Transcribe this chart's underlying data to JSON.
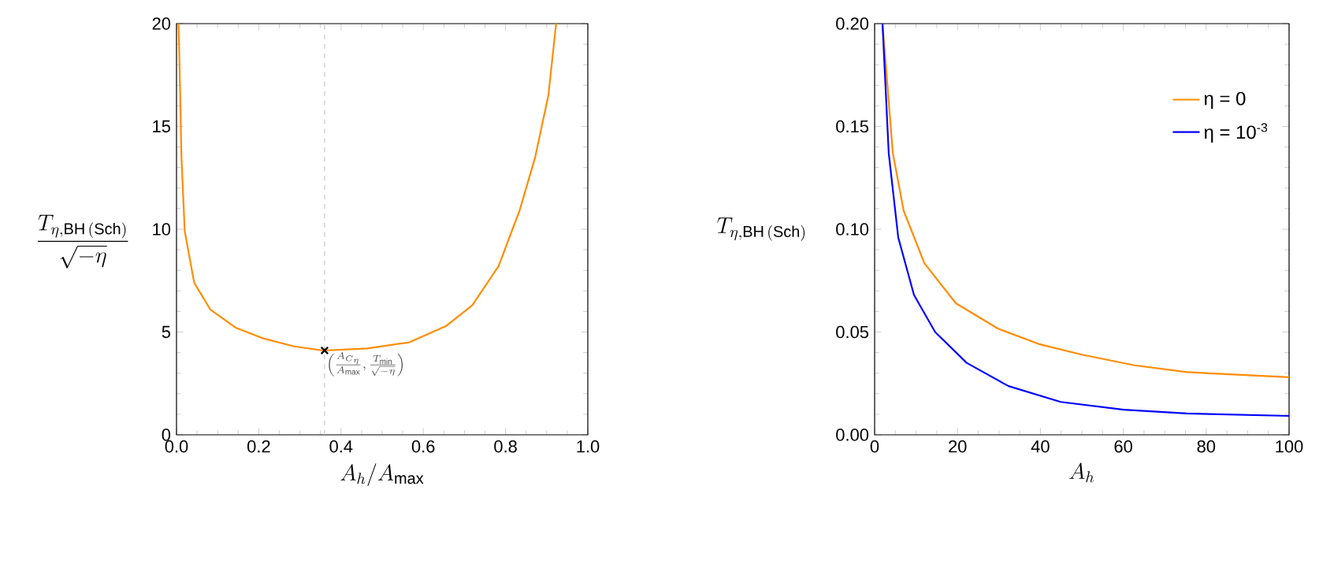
{
  "chart_data": [
    {
      "type": "line",
      "xlabel": "A_h/A_{\\mathrm{max}}",
      "ylabel": "\\frac{T_{\\eta,\\mathrm{BH\\,(Sch)}}}{\\sqrt{-\\eta}}",
      "xlim": [
        0,
        1
      ],
      "ylim": [
        0,
        20
      ],
      "xticks": [
        {
          "value": 0,
          "label": "0.0"
        },
        {
          "value": 0.2,
          "label": "0.2"
        },
        {
          "value": 0.4,
          "label": "0.4"
        },
        {
          "value": 0.6,
          "label": "0.6"
        },
        {
          "value": 0.8,
          "label": "0.8"
        },
        {
          "value": 1,
          "label": "1.0"
        }
      ],
      "yticks": [
        0,
        5,
        10,
        15,
        20
      ],
      "series": [
        {
          "color": "#ff8c00",
          "x": [
            0.005,
            0.009,
            0.012,
            0.02,
            0.043,
            0.082,
            0.145,
            0.209,
            0.286,
            0.357,
            0.464,
            0.566,
            0.656,
            0.719,
            0.783,
            0.834,
            0.872,
            0.904,
            0.923
          ],
          "values": [
            20,
            16.5,
            13.5,
            9.9,
            7.4,
            6.1,
            5.2,
            4.7,
            4.3,
            4.1,
            4.2,
            4.5,
            5.3,
            6.3,
            8.2,
            10.9,
            13.5,
            16.5,
            20
          ]
        },
        {
          "type": "scatter",
          "marker": "cross",
          "color": "#000000",
          "x": [
            0.36
          ],
          "values": [
            4.1
          ]
        }
      ],
      "ref_lines": [
        {
          "axis": "x",
          "value": 0.36,
          "color": "#bbbbbb",
          "line_style": "dashed"
        }
      ],
      "annotations": [
        {
          "text": "\\left(\\frac{A_{C_\\eta}}{A_{\\mathrm{max}}},\\frac{T_{\\mathrm{min}}}{\\sqrt{-\\eta}}\\right)",
          "x": 0.36,
          "y": 4.1
        }
      ]
    },
    {
      "type": "line",
      "xlabel": "A_h",
      "ylabel": "T_{\\eta,\\mathrm{BH\\,(Sch)}}",
      "xlim": [
        0,
        100
      ],
      "ylim": [
        0,
        0.2
      ],
      "xticks": [
        0,
        20,
        40,
        60,
        80,
        100
      ],
      "yticks": [
        {
          "value": 0,
          "label": "0.00"
        },
        {
          "value": 0.05,
          "label": "0.05"
        },
        {
          "value": 0.1,
          "label": "0.10"
        },
        {
          "value": 0.15,
          "label": "0.15"
        },
        {
          "value": 0.2,
          "label": "0.20"
        }
      ],
      "legend": "top right",
      "series": [
        {
          "name": "η = 0",
          "color": "#ff8c00",
          "x": [
            1.9,
            4.4,
            7.0,
            12.0,
            19.6,
            29.7,
            39.9,
            50,
            62.7,
            75.3,
            100
          ],
          "values": [
            0.2,
            0.137,
            0.109,
            0.0835,
            0.064,
            0.0517,
            0.044,
            0.039,
            0.0338,
            0.0305,
            0.028
          ]
        },
        {
          "name": "η = 10$^{-3}$",
          "color": "#0000ff",
          "x": [
            1.9,
            3.4,
            5.7,
            9.5,
            14.6,
            22.2,
            32.3,
            44.9,
            60.1,
            75.3,
            100
          ],
          "values": [
            0.2,
            0.137,
            0.096,
            0.068,
            0.05,
            0.035,
            0.0237,
            0.016,
            0.0122,
            0.0104,
            0.0092
          ]
        }
      ]
    }
  ]
}
